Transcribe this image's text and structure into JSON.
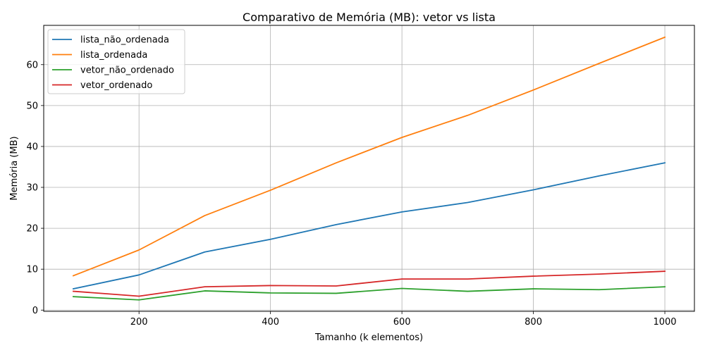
{
  "chart_data": {
    "type": "line",
    "title": "Comparativo de Memória (MB): vetor vs lista",
    "xlabel": "Tamanho (k elementos)",
    "ylabel": "Memória (MB)",
    "x": [
      100,
      200,
      300,
      400,
      500,
      600,
      700,
      800,
      900,
      1000
    ],
    "xlim": [
      55,
      1045
    ],
    "ylim": [
      -0.3,
      69.6
    ],
    "xticks": [
      200,
      400,
      600,
      800,
      1000
    ],
    "yticks": [
      0,
      10,
      20,
      30,
      40,
      50,
      60
    ],
    "grid": true,
    "legend_position": "top-left",
    "series": [
      {
        "name": "lista_não_ordenada",
        "color": "#1f77b4",
        "values": [
          5.2,
          8.6,
          14.2,
          17.3,
          20.9,
          24.0,
          26.3,
          29.4,
          32.8,
          36.0
        ]
      },
      {
        "name": "lista_ordenada",
        "color": "#ff7f0e",
        "values": [
          8.4,
          14.7,
          23.1,
          29.3,
          36.0,
          42.2,
          47.6,
          53.8,
          60.3,
          66.7
        ]
      },
      {
        "name": "vetor_não_ordenado",
        "color": "#2ca02c",
        "values": [
          3.3,
          2.5,
          4.7,
          4.2,
          4.1,
          5.3,
          4.6,
          5.2,
          5.0,
          5.7
        ]
      },
      {
        "name": "vetor_ordenado",
        "color": "#d62728",
        "values": [
          4.6,
          3.4,
          5.7,
          6.0,
          5.9,
          7.6,
          7.6,
          8.3,
          8.8,
          9.5
        ]
      }
    ]
  }
}
